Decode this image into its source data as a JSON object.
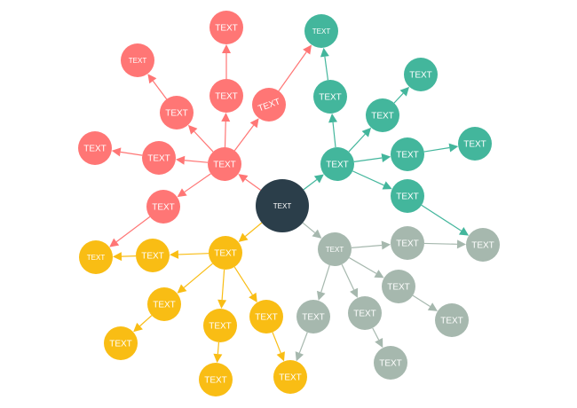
{
  "colors": {
    "center": "#2b3e4a",
    "red": "#ff7675",
    "teal": "#43b69c",
    "gray": "#a6b8ae",
    "yellow": "#f9bd14"
  },
  "nodes": [
    {
      "id": "c",
      "label": "TEXT",
      "group": "center"
    },
    {
      "id": "r0",
      "label": "TEXT",
      "group": "red"
    },
    {
      "id": "r1",
      "label": "TEXT",
      "group": "red"
    },
    {
      "id": "r2",
      "label": "TEXT",
      "group": "red"
    },
    {
      "id": "r3",
      "label": "TEXT",
      "group": "red"
    },
    {
      "id": "r4",
      "label": "TEXT",
      "group": "red"
    },
    {
      "id": "r5",
      "label": "TEXT",
      "group": "red"
    },
    {
      "id": "r6",
      "label": "TEXT",
      "group": "red"
    },
    {
      "id": "r7",
      "label": "TEXT",
      "group": "red"
    },
    {
      "id": "r8",
      "label": "TEXT",
      "group": "red"
    },
    {
      "id": "t0",
      "label": "TEXT",
      "group": "teal"
    },
    {
      "id": "t1",
      "label": "TEXT",
      "group": "teal"
    },
    {
      "id": "t2",
      "label": "TEXT",
      "group": "teal"
    },
    {
      "id": "t3",
      "label": "TEXT",
      "group": "teal"
    },
    {
      "id": "t4",
      "label": "TEXT",
      "group": "teal"
    },
    {
      "id": "t5",
      "label": "TEXT",
      "group": "teal"
    },
    {
      "id": "t6",
      "label": "TEXT",
      "group": "teal"
    },
    {
      "id": "t7",
      "label": "TEXT",
      "group": "teal"
    },
    {
      "id": "g0",
      "label": "TEXT",
      "group": "gray"
    },
    {
      "id": "g1",
      "label": "TEXT",
      "group": "gray"
    },
    {
      "id": "g2",
      "label": "TEXT",
      "group": "gray"
    },
    {
      "id": "g3",
      "label": "TEXT",
      "group": "gray"
    },
    {
      "id": "g4",
      "label": "TEXT",
      "group": "gray"
    },
    {
      "id": "g5",
      "label": "TEXT",
      "group": "gray"
    },
    {
      "id": "g6",
      "label": "TEXT",
      "group": "gray"
    },
    {
      "id": "g7",
      "label": "TEXT",
      "group": "gray"
    },
    {
      "id": "y0",
      "label": "TEXT",
      "group": "yellow"
    },
    {
      "id": "y1",
      "label": "TEXT",
      "group": "yellow"
    },
    {
      "id": "y2",
      "label": "TEXT",
      "group": "yellow"
    },
    {
      "id": "y3",
      "label": "TEXT",
      "group": "yellow"
    },
    {
      "id": "y4",
      "label": "TEXT",
      "group": "yellow"
    },
    {
      "id": "y5",
      "label": "TEXT",
      "group": "yellow"
    },
    {
      "id": "y6",
      "label": "TEXT",
      "group": "yellow"
    },
    {
      "id": "y7",
      "label": "TEXT",
      "group": "yellow"
    },
    {
      "id": "y8",
      "label": "TEXT",
      "group": "yellow"
    }
  ],
  "edges": [
    [
      "c",
      "r0",
      "red"
    ],
    [
      "r0",
      "r3",
      "red"
    ],
    [
      "r3",
      "r1",
      "red"
    ],
    [
      "r0",
      "r4",
      "red"
    ],
    [
      "r4",
      "r2",
      "red"
    ],
    [
      "r0",
      "r5",
      "red"
    ],
    [
      "r5",
      "t1",
      "red"
    ],
    [
      "r0",
      "r7",
      "red"
    ],
    [
      "r7",
      "r6",
      "red"
    ],
    [
      "r0",
      "r8",
      "red"
    ],
    [
      "r8",
      "y1",
      "red"
    ],
    [
      "c",
      "t0",
      "teal"
    ],
    [
      "t0",
      "t2",
      "teal"
    ],
    [
      "t2",
      "t1",
      "teal"
    ],
    [
      "t0",
      "t3",
      "teal"
    ],
    [
      "t3",
      "t4",
      "teal"
    ],
    [
      "t0",
      "t5",
      "teal"
    ],
    [
      "t5",
      "t6",
      "teal"
    ],
    [
      "t0",
      "t7",
      "teal"
    ],
    [
      "t7",
      "g2",
      "teal"
    ],
    [
      "c",
      "g0",
      "gray"
    ],
    [
      "g0",
      "g1",
      "gray"
    ],
    [
      "g1",
      "g2",
      "gray"
    ],
    [
      "g0",
      "g3",
      "gray"
    ],
    [
      "g3",
      "g4",
      "gray"
    ],
    [
      "g0",
      "g5",
      "gray"
    ],
    [
      "g5",
      "y8",
      "gray"
    ],
    [
      "g0",
      "g6",
      "gray"
    ],
    [
      "g6",
      "g7",
      "gray"
    ],
    [
      "c",
      "y0",
      "yellow"
    ],
    [
      "y0",
      "y2",
      "yellow"
    ],
    [
      "y2",
      "y1",
      "yellow"
    ],
    [
      "y0",
      "y3",
      "yellow"
    ],
    [
      "y3",
      "y4",
      "yellow"
    ],
    [
      "y0",
      "y5",
      "yellow"
    ],
    [
      "y5",
      "y6",
      "yellow"
    ],
    [
      "y0",
      "y7",
      "yellow"
    ],
    [
      "y7",
      "y8",
      "yellow"
    ]
  ]
}
